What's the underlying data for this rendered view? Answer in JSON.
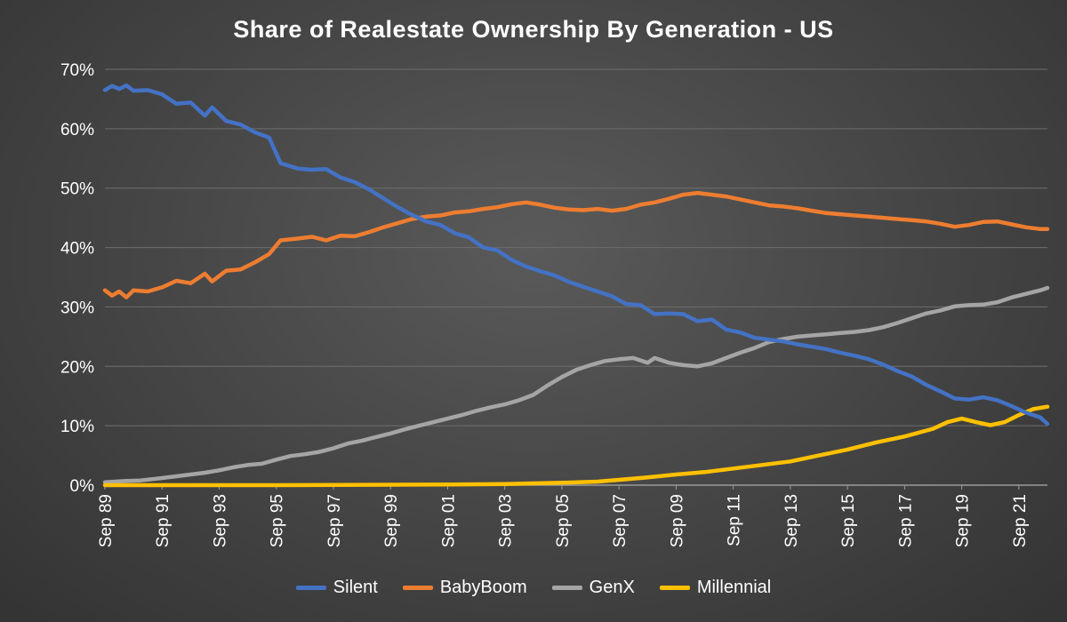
{
  "chart_data": {
    "type": "line",
    "title": "Share of Realestate Ownership By Generation - US",
    "xlabel": "",
    "ylabel": "",
    "ylim": [
      0,
      70
    ],
    "y_ticks": [
      "0%",
      "10%",
      "20%",
      "30%",
      "40%",
      "50%",
      "60%",
      "70%"
    ],
    "y_tick_values": [
      0,
      10,
      20,
      30,
      40,
      50,
      60,
      70
    ],
    "x_range": [
      1989.75,
      2022.75
    ],
    "x_tick_labels": [
      "Sep 89",
      "Sep 91",
      "Sep 93",
      "Sep 95",
      "Sep 97",
      "Sep 99",
      "Sep 01",
      "Sep 03",
      "Sep 05",
      "Sep 07",
      "Sep 09",
      "Sep 11",
      "Sep 13",
      "Sep 15",
      "Sep 17",
      "Sep 19",
      "Sep 21"
    ],
    "x_tick_values": [
      1989.75,
      1991.75,
      1993.75,
      1995.75,
      1997.75,
      1999.75,
      2001.75,
      2003.75,
      2005.75,
      2007.75,
      2009.75,
      2011.75,
      2013.75,
      2015.75,
      2017.75,
      2019.75,
      2021.75
    ],
    "grid": true,
    "legend": "bottom",
    "series": [
      {
        "name": "Silent",
        "color": "#4472c4",
        "points": [
          [
            1989.75,
            66.5
          ],
          [
            1990.0,
            67.2
          ],
          [
            1990.25,
            66.7
          ],
          [
            1990.5,
            67.3
          ],
          [
            1990.75,
            66.4
          ],
          [
            1991.25,
            66.5
          ],
          [
            1991.75,
            65.8
          ],
          [
            1992.25,
            64.2
          ],
          [
            1992.75,
            64.4
          ],
          [
            1993.25,
            62.2
          ],
          [
            1993.5,
            63.6
          ],
          [
            1994.0,
            61.3
          ],
          [
            1994.5,
            60.7
          ],
          [
            1995.0,
            59.4
          ],
          [
            1995.5,
            58.5
          ],
          [
            1995.9,
            54.2
          ],
          [
            1996.5,
            53.3
          ],
          [
            1997.0,
            53.1
          ],
          [
            1997.5,
            53.2
          ],
          [
            1998.0,
            51.8
          ],
          [
            1998.5,
            51.0
          ],
          [
            1999.0,
            49.8
          ],
          [
            1999.5,
            48.3
          ],
          [
            2000.0,
            46.8
          ],
          [
            2000.5,
            45.5
          ],
          [
            2001.0,
            44.4
          ],
          [
            2001.5,
            43.8
          ],
          [
            2002.0,
            42.4
          ],
          [
            2002.5,
            41.7
          ],
          [
            2003.0,
            40.0
          ],
          [
            2003.5,
            39.5
          ],
          [
            2004.0,
            37.9
          ],
          [
            2004.5,
            36.8
          ],
          [
            2005.0,
            36.0
          ],
          [
            2005.5,
            35.3
          ],
          [
            2006.0,
            34.2
          ],
          [
            2006.5,
            33.4
          ],
          [
            2007.0,
            32.6
          ],
          [
            2007.5,
            31.8
          ],
          [
            2008.0,
            30.5
          ],
          [
            2008.5,
            30.3
          ],
          [
            2009.0,
            28.8
          ],
          [
            2009.5,
            28.9
          ],
          [
            2010.0,
            28.8
          ],
          [
            2010.5,
            27.6
          ],
          [
            2011.0,
            27.9
          ],
          [
            2011.5,
            26.2
          ],
          [
            2012.0,
            25.7
          ],
          [
            2012.5,
            24.8
          ],
          [
            2013.0,
            24.5
          ],
          [
            2013.5,
            24.2
          ],
          [
            2014.0,
            23.7
          ],
          [
            2014.5,
            23.3
          ],
          [
            2015.0,
            22.9
          ],
          [
            2015.5,
            22.3
          ],
          [
            2016.0,
            21.8
          ],
          [
            2016.5,
            21.2
          ],
          [
            2017.0,
            20.3
          ],
          [
            2017.5,
            19.2
          ],
          [
            2018.0,
            18.3
          ],
          [
            2018.5,
            16.9
          ],
          [
            2019.0,
            15.8
          ],
          [
            2019.5,
            14.6
          ],
          [
            2020.0,
            14.4
          ],
          [
            2020.5,
            14.8
          ],
          [
            2021.0,
            14.3
          ],
          [
            2021.5,
            13.3
          ],
          [
            2022.0,
            12.2
          ],
          [
            2022.5,
            11.4
          ],
          [
            2022.75,
            10.3
          ]
        ]
      },
      {
        "name": "BabyBoom",
        "color": "#ed7d31",
        "points": [
          [
            1989.75,
            32.8
          ],
          [
            1990.0,
            31.9
          ],
          [
            1990.25,
            32.6
          ],
          [
            1990.5,
            31.6
          ],
          [
            1990.75,
            32.8
          ],
          [
            1991.25,
            32.6
          ],
          [
            1991.75,
            33.3
          ],
          [
            1992.25,
            34.4
          ],
          [
            1992.75,
            34.0
          ],
          [
            1993.25,
            35.6
          ],
          [
            1993.5,
            34.3
          ],
          [
            1994.0,
            36.1
          ],
          [
            1994.5,
            36.3
          ],
          [
            1995.0,
            37.5
          ],
          [
            1995.5,
            38.9
          ],
          [
            1995.9,
            41.2
          ],
          [
            1996.5,
            41.5
          ],
          [
            1997.0,
            41.8
          ],
          [
            1997.5,
            41.2
          ],
          [
            1998.0,
            42.0
          ],
          [
            1998.5,
            41.9
          ],
          [
            1999.0,
            42.6
          ],
          [
            1999.5,
            43.4
          ],
          [
            2000.0,
            44.1
          ],
          [
            2000.5,
            44.8
          ],
          [
            2001.0,
            45.2
          ],
          [
            2001.5,
            45.4
          ],
          [
            2002.0,
            45.9
          ],
          [
            2002.5,
            46.1
          ],
          [
            2003.0,
            46.5
          ],
          [
            2003.5,
            46.8
          ],
          [
            2004.0,
            47.3
          ],
          [
            2004.5,
            47.6
          ],
          [
            2005.0,
            47.2
          ],
          [
            2005.5,
            46.7
          ],
          [
            2006.0,
            46.4
          ],
          [
            2006.5,
            46.3
          ],
          [
            2007.0,
            46.5
          ],
          [
            2007.5,
            46.2
          ],
          [
            2008.0,
            46.5
          ],
          [
            2008.5,
            47.2
          ],
          [
            2009.0,
            47.6
          ],
          [
            2009.5,
            48.2
          ],
          [
            2010.0,
            48.9
          ],
          [
            2010.5,
            49.2
          ],
          [
            2011.0,
            48.9
          ],
          [
            2011.5,
            48.6
          ],
          [
            2012.0,
            48.1
          ],
          [
            2012.5,
            47.6
          ],
          [
            2013.0,
            47.1
          ],
          [
            2013.5,
            46.9
          ],
          [
            2014.0,
            46.6
          ],
          [
            2014.5,
            46.2
          ],
          [
            2015.0,
            45.8
          ],
          [
            2015.5,
            45.6
          ],
          [
            2016.0,
            45.4
          ],
          [
            2016.5,
            45.2
          ],
          [
            2017.0,
            45.0
          ],
          [
            2017.5,
            44.8
          ],
          [
            2018.0,
            44.6
          ],
          [
            2018.5,
            44.4
          ],
          [
            2019.0,
            44.0
          ],
          [
            2019.5,
            43.5
          ],
          [
            2020.0,
            43.8
          ],
          [
            2020.5,
            44.3
          ],
          [
            2021.0,
            44.4
          ],
          [
            2021.5,
            43.9
          ],
          [
            2022.0,
            43.4
          ],
          [
            2022.5,
            43.1
          ],
          [
            2022.75,
            43.1
          ]
        ]
      },
      {
        "name": "GenX",
        "color": "#a5a5a5",
        "points": [
          [
            1989.75,
            0.5
          ],
          [
            1990.5,
            0.7
          ],
          [
            1991.0,
            0.8
          ],
          [
            1991.75,
            1.2
          ],
          [
            1992.25,
            1.5
          ],
          [
            1992.75,
            1.8
          ],
          [
            1993.25,
            2.1
          ],
          [
            1993.75,
            2.5
          ],
          [
            1994.25,
            3.0
          ],
          [
            1994.75,
            3.4
          ],
          [
            1995.25,
            3.6
          ],
          [
            1995.75,
            4.3
          ],
          [
            1996.25,
            4.9
          ],
          [
            1996.75,
            5.2
          ],
          [
            1997.25,
            5.6
          ],
          [
            1997.75,
            6.2
          ],
          [
            1998.25,
            7.0
          ],
          [
            1998.75,
            7.5
          ],
          [
            1999.25,
            8.1
          ],
          [
            1999.75,
            8.7
          ],
          [
            2000.25,
            9.4
          ],
          [
            2000.75,
            10.0
          ],
          [
            2001.25,
            10.6
          ],
          [
            2001.75,
            11.2
          ],
          [
            2002.25,
            11.8
          ],
          [
            2002.75,
            12.5
          ],
          [
            2003.25,
            13.1
          ],
          [
            2003.75,
            13.6
          ],
          [
            2004.25,
            14.3
          ],
          [
            2004.75,
            15.2
          ],
          [
            2005.25,
            16.8
          ],
          [
            2005.75,
            18.2
          ],
          [
            2006.25,
            19.4
          ],
          [
            2006.75,
            20.2
          ],
          [
            2007.25,
            20.9
          ],
          [
            2007.75,
            21.2
          ],
          [
            2008.25,
            21.4
          ],
          [
            2008.75,
            20.6
          ],
          [
            2009.0,
            21.4
          ],
          [
            2009.5,
            20.6
          ],
          [
            2010.0,
            20.2
          ],
          [
            2010.5,
            20.0
          ],
          [
            2011.0,
            20.5
          ],
          [
            2011.5,
            21.4
          ],
          [
            2012.0,
            22.3
          ],
          [
            2012.5,
            23.1
          ],
          [
            2013.0,
            24.1
          ],
          [
            2013.5,
            24.6
          ],
          [
            2014.0,
            25.0
          ],
          [
            2014.5,
            25.2
          ],
          [
            2015.0,
            25.4
          ],
          [
            2015.5,
            25.6
          ],
          [
            2016.0,
            25.8
          ],
          [
            2016.5,
            26.1
          ],
          [
            2017.0,
            26.6
          ],
          [
            2017.5,
            27.3
          ],
          [
            2018.0,
            28.1
          ],
          [
            2018.5,
            28.9
          ],
          [
            2019.0,
            29.4
          ],
          [
            2019.5,
            30.1
          ],
          [
            2020.0,
            30.3
          ],
          [
            2020.5,
            30.4
          ],
          [
            2021.0,
            30.8
          ],
          [
            2021.5,
            31.6
          ],
          [
            2022.0,
            32.2
          ],
          [
            2022.5,
            32.8
          ],
          [
            2022.75,
            33.2
          ]
        ]
      },
      {
        "name": "Millennial",
        "color": "#ffc000",
        "points": [
          [
            1989.75,
            0.0
          ],
          [
            1995.75,
            0.0
          ],
          [
            2001.75,
            0.1
          ],
          [
            2003.75,
            0.2
          ],
          [
            2005.75,
            0.4
          ],
          [
            2007.0,
            0.6
          ],
          [
            2007.75,
            0.9
          ],
          [
            2008.75,
            1.3
          ],
          [
            2009.75,
            1.8
          ],
          [
            2010.75,
            2.2
          ],
          [
            2011.75,
            2.8
          ],
          [
            2012.75,
            3.4
          ],
          [
            2013.75,
            4.0
          ],
          [
            2014.75,
            5.0
          ],
          [
            2015.75,
            6.0
          ],
          [
            2016.75,
            7.2
          ],
          [
            2017.75,
            8.2
          ],
          [
            2018.75,
            9.5
          ],
          [
            2019.25,
            10.6
          ],
          [
            2019.75,
            11.2
          ],
          [
            2020.25,
            10.6
          ],
          [
            2020.75,
            10.1
          ],
          [
            2021.25,
            10.6
          ],
          [
            2021.75,
            11.8
          ],
          [
            2022.25,
            12.8
          ],
          [
            2022.75,
            13.2
          ]
        ]
      }
    ]
  }
}
